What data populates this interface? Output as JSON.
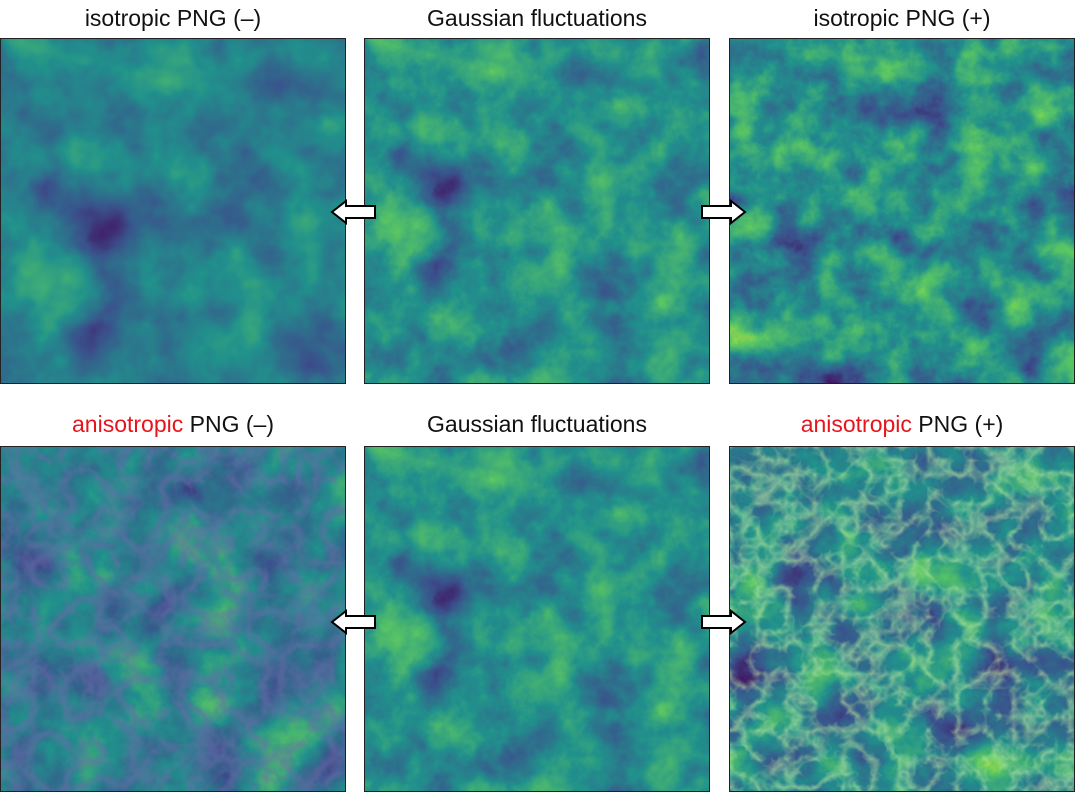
{
  "panels": [
    {
      "id": "tl",
      "title_plain": "isotropic PNG (–)",
      "variant": "iso-neg"
    },
    {
      "id": "tc",
      "title_plain": "Gaussian fluctuations",
      "variant": "gauss"
    },
    {
      "id": "tr",
      "title_plain": "isotropic PNG (+)",
      "variant": "iso-pos"
    },
    {
      "id": "bl",
      "title_red": "anisotropic",
      "title_rest": " PNG (–)",
      "variant": "aniso-neg"
    },
    {
      "id": "bc",
      "title_plain": "Gaussian fluctuations",
      "variant": "gauss"
    },
    {
      "id": "br",
      "title_red": "anisotropic",
      "title_rest": " PNG (+)",
      "variant": "aniso-pos"
    }
  ],
  "arrows": [
    {
      "id": "top-left",
      "direction": "left"
    },
    {
      "id": "top-right",
      "direction": "right"
    },
    {
      "id": "bottom-left",
      "direction": "left"
    },
    {
      "id": "bottom-right",
      "direction": "right"
    }
  ],
  "colors": {
    "colormap": [
      "#440154",
      "#3b528b",
      "#21918c",
      "#5ec962",
      "#fde725"
    ],
    "highlight_text": "#e8141c",
    "text": "#111111"
  }
}
